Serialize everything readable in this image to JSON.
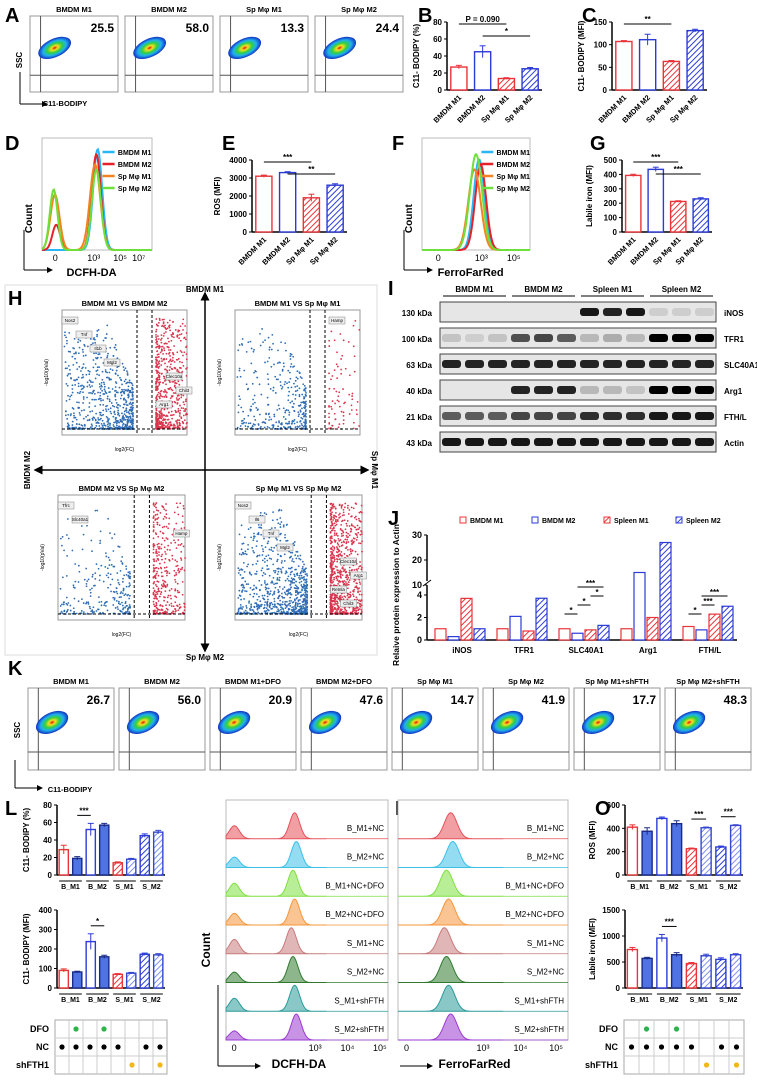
{
  "panel_labels": [
    "A",
    "B",
    "C",
    "D",
    "E",
    "F",
    "G",
    "H",
    "I",
    "J",
    "K",
    "L",
    "M",
    "N",
    "O"
  ],
  "flow_A": {
    "titles": [
      "BMDM M1",
      "BMDM M2",
      "Sp Mφ M1",
      "Sp Mφ M2"
    ],
    "values": [
      "25.5",
      "58.0",
      "13.3",
      "24.4"
    ],
    "ylabel": "SSC",
    "xlabel": "C11-BODIPY"
  },
  "flow_K": {
    "titles": [
      "BMDM M1",
      "BMDM M2",
      "BMDM M1+DFO",
      "BMDM M2+DFO",
      "Sp Mφ M1",
      "Sp Mφ M2",
      "Sp Mφ M1+shFTH",
      "Sp Mφ M2+shFTH"
    ],
    "values": [
      "26.7",
      "56.0",
      "20.9",
      "47.6",
      "14.7",
      "41.9",
      "17.7",
      "48.3"
    ],
    "ylabel": "SSC",
    "xlabel": "C11-BODIPY"
  },
  "volcano_H": {
    "axis_labels": {
      "top": "BMDM M1",
      "left": "BMDM M2",
      "right": "Sp Mφ M1",
      "bottom": "Sp Mφ M2"
    },
    "xlabel": "log2(FC)",
    "ylabel": "-log10(pVal)",
    "colors": {
      "down": "#2f6db5",
      "up": "#d9364e"
    },
    "plots": [
      {
        "title": "BMDM M1 VS BMDM M2",
        "genes": [
          "Nos2",
          "Tnf",
          "Il1b",
          "Mgl2",
          "Clec10a",
          "Chil3",
          "Arg1"
        ]
      },
      {
        "title": "BMDM M1 VS Sp Mφ M1",
        "genes": [
          "Hamp"
        ]
      },
      {
        "title": "BMDM M2 VS Sp Mφ M2",
        "genes": [
          "Tfrc",
          "Slc40a1",
          "Hamp"
        ]
      },
      {
        "title": "Sp Mφ M1 VS Sp Mφ M2",
        "genes": [
          "Nos2",
          "Il6",
          "Tnf",
          "Mgl2",
          "Clec10a",
          "Arg1",
          "Retnla",
          "Chil3"
        ]
      }
    ]
  },
  "blot_I": {
    "groups": [
      "BMDM M1",
      "BMDM M2",
      "Spleen M1",
      "Spleen M2"
    ],
    "rows": [
      {
        "kda": "130 kDa",
        "protein": "iNOS",
        "band_intensity": [
          0,
          0,
          0,
          0,
          0,
          0,
          0.9,
          0.85,
          0.9,
          0.1,
          0.1,
          0.1
        ]
      },
      {
        "kda": "100 kDa",
        "protein": "TFR1",
        "band_intensity": [
          0.15,
          0.1,
          0.15,
          0.65,
          0.7,
          0.6,
          0.2,
          0.25,
          0.2,
          1,
          1,
          1
        ]
      },
      {
        "kda": "63 kDa",
        "protein": "SLC40A1",
        "band_intensity": [
          0.85,
          0.85,
          0.85,
          0.85,
          0.85,
          0.85,
          0.85,
          0.85,
          0.85,
          0.85,
          0.85,
          0.85
        ]
      },
      {
        "kda": "40 kDa",
        "protein": "Arg1",
        "band_intensity": [
          0,
          0,
          0,
          0.85,
          0.85,
          0.85,
          0.2,
          0.2,
          0.15,
          1,
          1,
          1
        ]
      },
      {
        "kda": "21 kDa",
        "protein": "FTH/L",
        "band_intensity": [
          0.6,
          0.6,
          0.6,
          0.7,
          0.7,
          0.7,
          0.8,
          0.8,
          0.8,
          0.9,
          0.9,
          0.9
        ]
      },
      {
        "kda": "43 kDa",
        "protein": "Actin",
        "band_intensity": [
          0.9,
          0.9,
          0.9,
          0.9,
          0.9,
          0.9,
          0.9,
          0.9,
          0.9,
          0.9,
          0.9,
          0.9
        ]
      }
    ]
  },
  "treatment_table": {
    "rows": [
      {
        "label": "DFO",
        "marks": [
          0,
          1,
          0,
          1,
          0,
          0,
          0,
          0
        ],
        "color": "#2db34a"
      },
      {
        "label": "NC",
        "marks": [
          1,
          1,
          1,
          1,
          1,
          0,
          1,
          1
        ],
        "color": "#000000"
      },
      {
        "label": "shFTH1",
        "marks": [
          0,
          0,
          0,
          0,
          0,
          1,
          0,
          1
        ],
        "color": "#f2b81b"
      }
    ]
  },
  "chart_data": [
    {
      "panel": "B",
      "type": "bar",
      "categories": [
        "BMDM M1",
        "BMDM M2",
        "Sp Mφ M1",
        "Sp Mφ M2"
      ],
      "values": [
        27,
        45,
        13.5,
        25
      ],
      "errors": [
        2,
        7,
        1,
        1.5
      ],
      "ylabel": "C11- BODIPY (%)",
      "ylim": [
        0,
        80
      ],
      "yticks": [
        "0",
        "20",
        "40",
        "60",
        "80"
      ],
      "styles": [
        "red-open",
        "blue-open",
        "red-hatch",
        "blue-hatch"
      ],
      "annotations": [
        {
          "from": 0,
          "to": 2,
          "text": "P = 0.090"
        },
        {
          "from": 1,
          "to": 3,
          "text": "*"
        }
      ]
    },
    {
      "panel": "C",
      "type": "bar",
      "categories": [
        "BMDM M1",
        "BMDM M2",
        "Sp Mφ M1",
        "Sp Mφ M2"
      ],
      "values": [
        107,
        111,
        63,
        131
      ],
      "errors": [
        2,
        12,
        2,
        3
      ],
      "ylabel": "C11- BODIPY (MFI)",
      "ylim": [
        0,
        150
      ],
      "yticks": [
        "0",
        "50",
        "100",
        "150"
      ],
      "styles": [
        "red-open",
        "blue-open",
        "red-hatch",
        "blue-hatch"
      ],
      "annotations": [
        {
          "from": 0,
          "to": 2,
          "text": "**"
        }
      ]
    },
    {
      "panel": "E",
      "type": "bar",
      "categories": [
        "BMDM M1",
        "BMDM M2",
        "Sp Mφ M1",
        "Sp Mφ M2"
      ],
      "values": [
        3100,
        3300,
        1900,
        2600
      ],
      "errors": [
        60,
        50,
        200,
        80
      ],
      "ylabel": "ROS (MFI)",
      "ylim": [
        0,
        4000
      ],
      "yticks": [
        "0",
        "1000",
        "2000",
        "3000",
        "4000"
      ],
      "styles": [
        "red-open",
        "blue-open",
        "red-hatch",
        "blue-hatch"
      ],
      "annotations": [
        {
          "from": 0,
          "to": 2,
          "text": "***"
        },
        {
          "from": 1,
          "to": 3,
          "text": "**"
        }
      ]
    },
    {
      "panel": "G",
      "type": "bar",
      "categories": [
        "BMDM M1",
        "BMDM M2",
        "Sp Mφ M1",
        "Sp Mφ M2"
      ],
      "values": [
        393,
        435,
        212,
        230
      ],
      "errors": [
        8,
        15,
        5,
        8
      ],
      "ylabel": "Labile iron (MFI)",
      "ylim": [
        0,
        500
      ],
      "yticks": [
        "0",
        "100",
        "200",
        "300",
        "400",
        "500"
      ],
      "styles": [
        "red-open",
        "blue-open",
        "red-hatch",
        "blue-hatch"
      ],
      "annotations": [
        {
          "from": 0,
          "to": 2,
          "text": "***"
        },
        {
          "from": 1,
          "to": 3,
          "text": "***"
        }
      ]
    },
    {
      "panel": "J",
      "type": "bar",
      "categories": [
        "iNOS",
        "TFR1",
        "SLC40A1",
        "Arg1",
        "FTH/L"
      ],
      "ylabel": "Relaive protein expression to Actin",
      "yticks_lower": [
        "0",
        "2",
        "4"
      ],
      "yticks_upper": [
        "10",
        "20",
        "30"
      ],
      "ylim_lower": [
        0,
        4
      ],
      "ylim_upper": [
        10,
        30
      ],
      "series": [
        {
          "name": "BMDM M1",
          "values": [
            1,
            1,
            1,
            1,
            1.2
          ],
          "style": "red-open"
        },
        {
          "name": "BMDM M2",
          "values": [
            0.3,
            2.1,
            0.6,
            15,
            0.9
          ],
          "style": "blue-open"
        },
        {
          "name": "Spleen M1",
          "values": [
            3.7,
            0.8,
            0.9,
            2,
            2.3
          ],
          "style": "red-hatch"
        },
        {
          "name": "Spleen M2",
          "values": [
            1,
            4.7,
            1.3,
            27,
            3
          ],
          "style": "blue-hatch"
        }
      ],
      "annotations": [
        {
          "category": 2,
          "from": 0,
          "to": 1,
          "text": "*"
        },
        {
          "category": 2,
          "from": 1,
          "to": 2,
          "text": "*"
        },
        {
          "category": 2,
          "from": 2,
          "to": 3,
          "text": "*"
        },
        {
          "category": 2,
          "from": 1,
          "to": 3,
          "text": "***"
        },
        {
          "category": 4,
          "from": 0,
          "to": 1,
          "text": "*"
        },
        {
          "category": 4,
          "from": 1,
          "to": 2,
          "text": "***"
        },
        {
          "category": 4,
          "from": 1,
          "to": 3,
          "text": "***"
        }
      ]
    },
    {
      "panel": "L-top",
      "type": "bar",
      "groups": [
        "B_M1",
        "B_M2",
        "S_M1",
        "S_M2"
      ],
      "values": [
        29,
        19,
        52,
        57,
        14,
        18,
        45,
        49
      ],
      "errors": [
        5,
        2,
        7,
        2,
        1,
        1,
        2,
        2
      ],
      "ylabel": "C11- BODIPY (%)",
      "ylim": [
        0,
        80
      ],
      "yticks": [
        "0",
        "20",
        "40",
        "60",
        "80"
      ],
      "styles": [
        "red-open",
        "blue-fill",
        "blue-open",
        "blue-fill",
        "red-hatch",
        "light-hatch",
        "blue-hatch",
        "light-hatch"
      ],
      "annotations": [
        {
          "from": 1,
          "to": 2,
          "text": "***"
        }
      ]
    },
    {
      "panel": "L-bottom",
      "type": "bar",
      "groups": [
        "B_M1",
        "B_M2",
        "S_M1",
        "S_M2"
      ],
      "values": [
        90,
        82,
        238,
        160,
        70,
        76,
        173,
        170
      ],
      "errors": [
        8,
        4,
        40,
        8,
        4,
        4,
        6,
        6
      ],
      "ylabel": "C11- BODIPY (MFI)",
      "ylim": [
        0,
        400
      ],
      "yticks": [
        "0",
        "100",
        "200",
        "300",
        "400"
      ],
      "styles": [
        "red-open",
        "blue-fill",
        "blue-open",
        "blue-fill",
        "red-hatch",
        "light-hatch",
        "blue-hatch",
        "light-hatch"
      ],
      "annotations": [
        {
          "from": 2,
          "to": 3,
          "text": "*"
        }
      ]
    },
    {
      "panel": "O-top",
      "type": "bar",
      "groups": [
        "B_M1",
        "B_M2",
        "S_M1",
        "S_M2"
      ],
      "values": [
        410,
        375,
        485,
        440,
        225,
        405,
        240,
        425
      ],
      "errors": [
        20,
        30,
        12,
        25,
        6,
        6,
        8,
        6
      ],
      "ylabel": "ROS (MFI)",
      "ylim": [
        0,
        600
      ],
      "yticks": [
        "0",
        "200",
        "400",
        "600"
      ],
      "styles": [
        "red-open",
        "blue-fill",
        "blue-open",
        "blue-fill",
        "red-hatch",
        "light-hatch",
        "blue-hatch",
        "light-hatch"
      ],
      "annotations": [
        {
          "from": 4,
          "to": 5,
          "text": "***"
        },
        {
          "from": 6,
          "to": 7,
          "text": "***"
        }
      ]
    },
    {
      "panel": "O-bottom",
      "type": "bar",
      "groups": [
        "B_M1",
        "B_M2",
        "S_M1",
        "S_M2"
      ],
      "values": [
        740,
        570,
        960,
        640,
        470,
        620,
        550,
        640
      ],
      "errors": [
        40,
        20,
        70,
        40,
        20,
        30,
        30,
        20
      ],
      "ylabel": "Labile iron (MFI)",
      "ylim": [
        0,
        1500
      ],
      "yticks": [
        "0",
        "500",
        "1000",
        "1500"
      ],
      "styles": [
        "red-open",
        "blue-fill",
        "blue-open",
        "blue-fill",
        "red-hatch",
        "light-hatch",
        "blue-hatch",
        "light-hatch"
      ],
      "annotations": [
        {
          "from": 2,
          "to": 3,
          "text": "***"
        }
      ]
    },
    {
      "panel": "D",
      "type": "line",
      "xlabel": "DCFH-DA",
      "ylabel": "Count",
      "xticks": [
        "0",
        "10³",
        "10⁵",
        "10⁷"
      ],
      "legend": "top-right",
      "series": [
        {
          "name": "BMDM M1",
          "color": "#29b6f6",
          "peaks": [
            [
              3.3,
              0.35,
              1.0
            ]
          ]
        },
        {
          "name": "BMDM M2",
          "color": "#e8202a",
          "peaks": [
            [
              3.2,
              0.35,
              0.95
            ],
            [
              0.1,
              0.3,
              0.25
            ]
          ]
        },
        {
          "name": "Sp Mφ M1",
          "color": "#f58220",
          "peaks": [
            [
              3.1,
              0.4,
              0.85
            ],
            [
              0,
              0.35,
              0.55
            ]
          ]
        },
        {
          "name": "Sp Mφ M2",
          "color": "#6ee03a",
          "peaks": [
            [
              3.2,
              0.35,
              0.8
            ],
            [
              -0.1,
              0.3,
              0.6
            ]
          ]
        }
      ]
    },
    {
      "panel": "F",
      "type": "line",
      "xlabel": "FerroFarRed",
      "ylabel": "Count",
      "xticks": [
        "0",
        "10³",
        "10⁵"
      ],
      "legend": "top-right",
      "series": [
        {
          "name": "BMDM M1",
          "color": "#29b6f6",
          "peaks": [
            [
              2.7,
              0.35,
              0.9
            ]
          ]
        },
        {
          "name": "BMDM M2",
          "color": "#e8202a",
          "peaks": [
            [
              2.8,
              0.35,
              0.85
            ]
          ]
        },
        {
          "name": "Sp Mφ M1",
          "color": "#f58220",
          "peaks": [
            [
              2.4,
              0.4,
              0.8
            ]
          ]
        },
        {
          "name": "Sp Mφ M2",
          "color": "#6ee03a",
          "peaks": [
            [
              2.5,
              0.4,
              0.95
            ]
          ]
        }
      ]
    },
    {
      "panel": "M",
      "type": "area",
      "xlabel": "DCFH-DA",
      "ylabel": "Count",
      "xticks": [
        "0",
        "10³",
        "10⁴",
        "10⁵"
      ],
      "series": [
        {
          "name": "B_M1+NC",
          "color": "#e8505a",
          "peaks": [
            [
              3.6,
              0.3,
              1
            ],
            [
              0,
              0.3,
              0.5
            ]
          ]
        },
        {
          "name": "B_M2+NC",
          "color": "#3cc0e8",
          "peaks": [
            [
              3.7,
              0.3,
              1
            ],
            [
              0,
              0.3,
              0.4
            ]
          ]
        },
        {
          "name": "B_M1+NC+DFO",
          "color": "#7ee040",
          "peaks": [
            [
              3.5,
              0.3,
              1
            ],
            [
              0,
              0.3,
              0.5
            ]
          ]
        },
        {
          "name": "B_M2+NC+DFO",
          "color": "#f5953a",
          "peaks": [
            [
              3.6,
              0.3,
              1
            ],
            [
              0,
              0.3,
              0.45
            ]
          ]
        },
        {
          "name": "S_M1+NC",
          "color": "#c87a7a",
          "peaks": [
            [
              3.4,
              0.3,
              1
            ],
            [
              0,
              0.3,
              0.55
            ]
          ]
        },
        {
          "name": "S_M2+NC",
          "color": "#2f7a2f",
          "peaks": [
            [
              3.5,
              0.3,
              1
            ],
            [
              0,
              0.3,
              0.4
            ]
          ]
        },
        {
          "name": "S_M1+shFTH",
          "color": "#2a9a9a",
          "peaks": [
            [
              3.6,
              0.3,
              1
            ],
            [
              0,
              0.3,
              0.5
            ]
          ]
        },
        {
          "name": "S_M2+shFTH",
          "color": "#9a3ad0",
          "peaks": [
            [
              3.7,
              0.3,
              1
            ],
            [
              0,
              0.3,
              0.35
            ]
          ]
        }
      ]
    },
    {
      "panel": "N",
      "type": "area",
      "xlabel": "FerroFarRed",
      "ylabel": "Count",
      "xticks": [
        "0",
        "10³",
        "10⁴",
        "10⁵"
      ],
      "series": [
        {
          "name": "B_M1+NC",
          "color": "#e8505a",
          "peaks": [
            [
              3.0,
              0.3,
              1
            ]
          ]
        },
        {
          "name": "B_M2+NC",
          "color": "#3cc0e8",
          "peaks": [
            [
              3.1,
              0.3,
              1
            ]
          ]
        },
        {
          "name": "B_M1+NC+DFO",
          "color": "#7ee040",
          "peaks": [
            [
              2.8,
              0.3,
              1
            ]
          ]
        },
        {
          "name": "B_M2+NC+DFO",
          "color": "#f5953a",
          "peaks": [
            [
              2.9,
              0.3,
              1
            ]
          ]
        },
        {
          "name": "S_M1+NC",
          "color": "#c87a7a",
          "peaks": [
            [
              2.7,
              0.3,
              1
            ]
          ]
        },
        {
          "name": "S_M2+NC",
          "color": "#2f7a2f",
          "peaks": [
            [
              2.8,
              0.3,
              1
            ]
          ]
        },
        {
          "name": "S_M1+shFTH",
          "color": "#2a9a9a",
          "peaks": [
            [
              2.9,
              0.3,
              1
            ]
          ]
        },
        {
          "name": "S_M2+shFTH",
          "color": "#9a3ad0",
          "peaks": [
            [
              3.0,
              0.3,
              1
            ]
          ]
        }
      ]
    }
  ]
}
